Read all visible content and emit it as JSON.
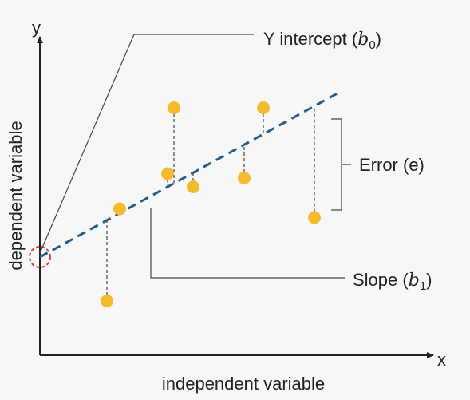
{
  "axes": {
    "x_label": "x",
    "y_label": "y",
    "x_title": "independent variable",
    "y_title": "dependent variable"
  },
  "annotations": {
    "intercept": {
      "text": "Y intercept (",
      "symbol": "b",
      "sub": "0",
      "close": ")"
    },
    "error": {
      "text": "Error (e)"
    },
    "slope": {
      "text": "Slope (",
      "symbol": "b",
      "sub": "1",
      "close": ")"
    }
  },
  "colors": {
    "point": "#f2bc2e",
    "regression_line": "#255d86",
    "intercept_marker": "#e03a2f",
    "axis": "#222222",
    "leader_line": "#444444",
    "residual": "#444444"
  },
  "chart_data": {
    "type": "scatter",
    "xlabel": "independent variable",
    "ylabel": "dependent variable",
    "grid": false,
    "regression_line": {
      "intercept": 1.0,
      "slope": 0.4,
      "x_range": [
        0,
        9.3
      ]
    },
    "points": [
      {
        "x": 2.1,
        "y": 0.0
      },
      {
        "x": 2.5,
        "y": 2.1
      },
      {
        "x": 4.0,
        "y": 2.9
      },
      {
        "x": 4.2,
        "y": 4.4
      },
      {
        "x": 4.8,
        "y": 2.6
      },
      {
        "x": 6.4,
        "y": 2.8
      },
      {
        "x": 7.0,
        "y": 4.4
      },
      {
        "x": 8.6,
        "y": 1.9
      }
    ]
  }
}
